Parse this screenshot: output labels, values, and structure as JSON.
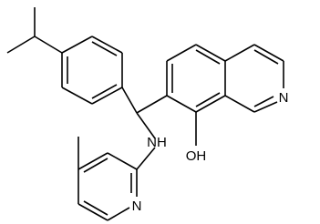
{
  "atoms": {
    "quinoline_n": "N",
    "amine": "NH",
    "hydroxyl": "OH",
    "pyridine_n": "N"
  }
}
